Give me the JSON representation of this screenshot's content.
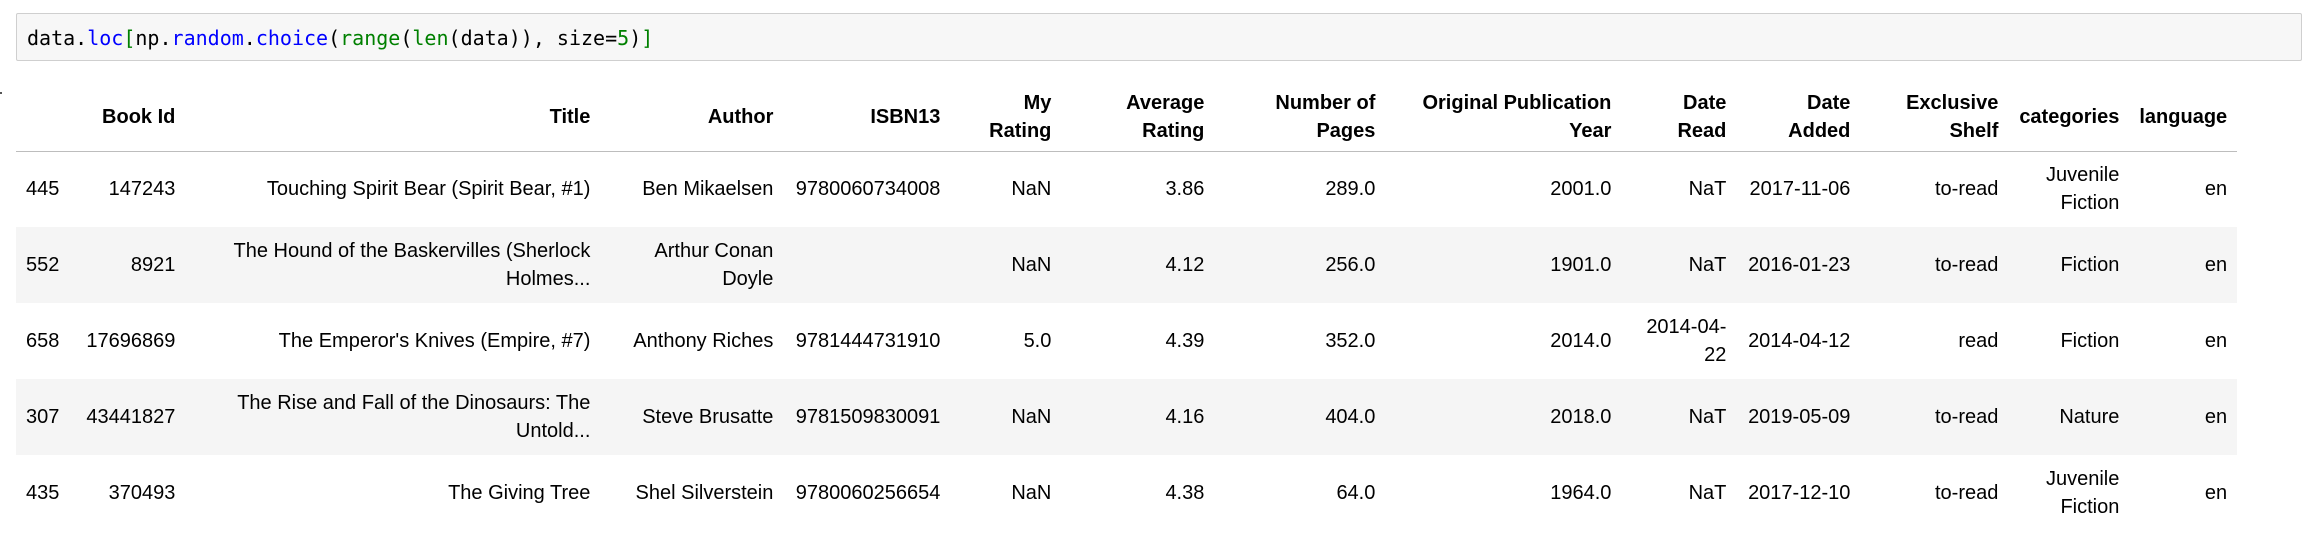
{
  "code_cell": {
    "tokens": [
      {
        "text": "data",
        "cls": "tok-plain"
      },
      {
        "text": ".",
        "cls": "tok-plain"
      },
      {
        "text": "loc",
        "cls": "tok-attr"
      },
      {
        "text": "[",
        "cls": "tok-bracket"
      },
      {
        "text": "np",
        "cls": "tok-plain"
      },
      {
        "text": ".",
        "cls": "tok-plain"
      },
      {
        "text": "random",
        "cls": "tok-attr"
      },
      {
        "text": ".",
        "cls": "tok-plain"
      },
      {
        "text": "choice",
        "cls": "tok-attr"
      },
      {
        "text": "(",
        "cls": "tok-plain"
      },
      {
        "text": "range",
        "cls": "tok-func"
      },
      {
        "text": "(",
        "cls": "tok-plain"
      },
      {
        "text": "len",
        "cls": "tok-func"
      },
      {
        "text": "(",
        "cls": "tok-plain"
      },
      {
        "text": "data",
        "cls": "tok-plain"
      },
      {
        "text": "))",
        "cls": "tok-plain"
      },
      {
        "text": ", ",
        "cls": "tok-plain"
      },
      {
        "text": "size",
        "cls": "tok-plain"
      },
      {
        "text": "=",
        "cls": "tok-plain"
      },
      {
        "text": "5",
        "cls": "tok-num"
      },
      {
        "text": ")",
        "cls": "tok-plain"
      },
      {
        "text": "]",
        "cls": "tok-bracket"
      }
    ]
  },
  "table": {
    "columns": [
      {
        "label": "",
        "width": 46
      },
      {
        "label": "Book Id",
        "width": 116
      },
      {
        "label": "Title",
        "width": 415
      },
      {
        "label": "Author",
        "width": 183
      },
      {
        "label": "ISBN13",
        "width": 167
      },
      {
        "label": "My Rating",
        "width": 111
      },
      {
        "label": "Average Rating",
        "width": 153
      },
      {
        "label": "Number of Pages",
        "width": 171
      },
      {
        "label": "Original Publication Year",
        "width": 236
      },
      {
        "label": "Date Read",
        "width": 115
      },
      {
        "label": "Date Added",
        "width": 124
      },
      {
        "label": "Exclusive Shelf",
        "width": 148
      },
      {
        "label": "categories",
        "width": 121
      },
      {
        "label": "language",
        "width": 99
      }
    ],
    "rows": [
      [
        "445",
        "147243",
        "Touching Spirit Bear (Spirit Bear, #1)",
        "Ben Mikaelsen",
        "9780060734008",
        "NaN",
        "3.86",
        "289.0",
        "2001.0",
        "NaT",
        "2017-11-06",
        "to-read",
        "Juvenile Fiction",
        "en"
      ],
      [
        "552",
        "8921",
        "The Hound of the Baskervilles (Sherlock Holmes...",
        "Arthur Conan Doyle",
        "",
        "NaN",
        "4.12",
        "256.0",
        "1901.0",
        "NaT",
        "2016-01-23",
        "to-read",
        "Fiction",
        "en"
      ],
      [
        "658",
        "17696869",
        "The Emperor's Knives (Empire, #7)",
        "Anthony Riches",
        "9781444731910",
        "5.0",
        "4.39",
        "352.0",
        "2014.0",
        "2014-04-22",
        "2014-04-12",
        "read",
        "Fiction",
        "en"
      ],
      [
        "307",
        "43441827",
        "The Rise and Fall of the Dinosaurs: The Untold...",
        "Steve Brusatte",
        "9781509830091",
        "NaN",
        "4.16",
        "404.0",
        "2018.0",
        "NaT",
        "2019-05-09",
        "to-read",
        "Nature",
        "en"
      ],
      [
        "435",
        "370493",
        "The Giving Tree",
        "Shel Silverstein",
        "9780060256654",
        "NaN",
        "4.38",
        "64.0",
        "1964.0",
        "NaT",
        "2017-12-10",
        "to-read",
        "Juvenile Fiction",
        "en"
      ]
    ]
  }
}
